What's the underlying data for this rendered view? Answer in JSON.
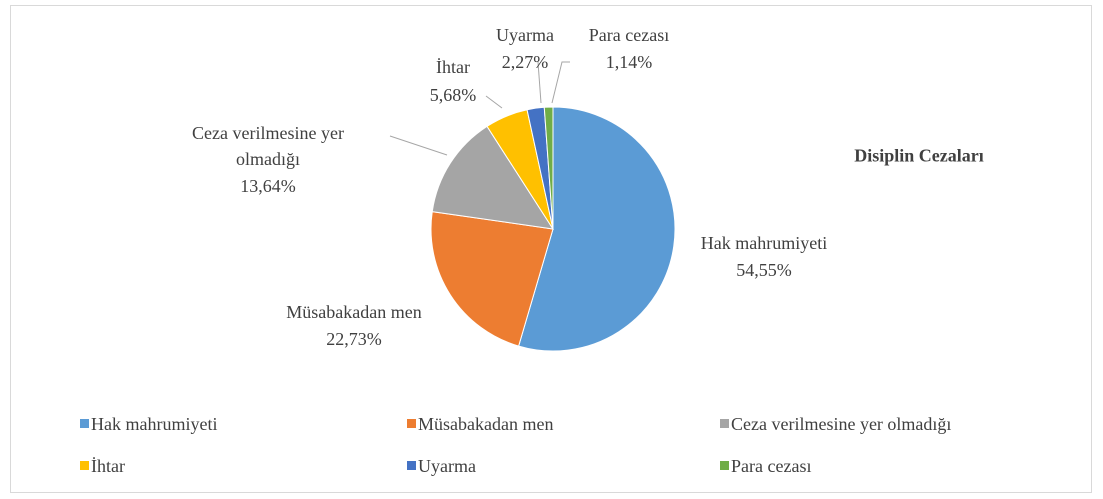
{
  "chart_data": {
    "type": "pie",
    "title": "Disiplin Cezaları",
    "categories": [
      "Hak mahrumiyeti",
      "Müsabakadan men",
      "Ceza verilmesine yer olmadığı",
      "İhtar",
      "Uyarma",
      "Para cezası"
    ],
    "values": [
      54.55,
      22.73,
      13.64,
      5.68,
      2.27,
      1.14
    ],
    "value_labels": [
      "54,55%",
      "22,73%",
      "13,64%",
      "5,68%",
      "2,27%",
      "1,14%"
    ],
    "colors": [
      "#5b9bd5",
      "#ed7d31",
      "#a5a5a5",
      "#ffc000",
      "#4472c4",
      "#70ad47"
    ],
    "legend": "bottom"
  }
}
